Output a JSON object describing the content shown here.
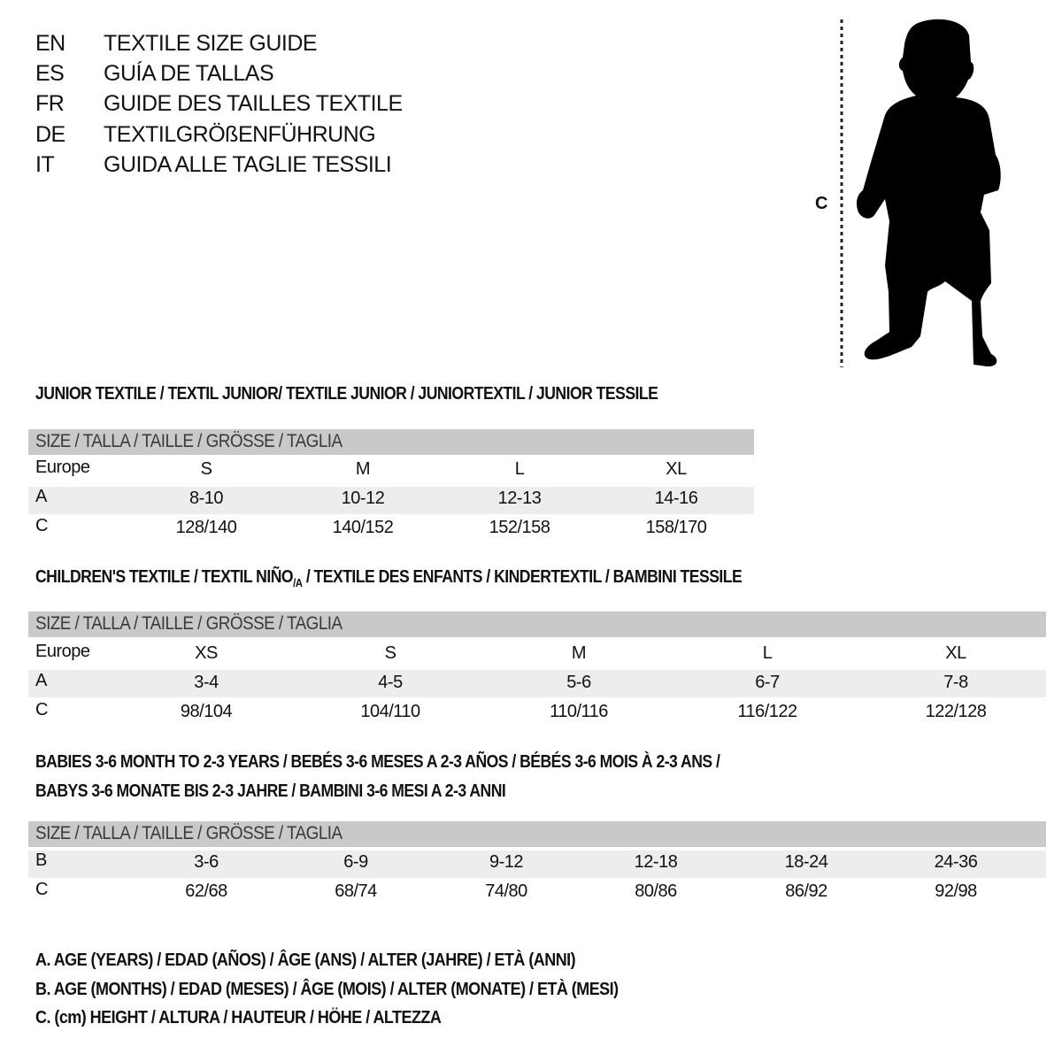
{
  "languages": [
    {
      "code": "EN",
      "title": "TEXTILE SIZE GUIDE"
    },
    {
      "code": "ES",
      "title": "GUÍA DE TALLAS"
    },
    {
      "code": "FR",
      "title": "GUIDE DES TAILLES TEXTILE"
    },
    {
      "code": "DE",
      "title": "TEXTILGRÖßENFÜHRUNG"
    },
    {
      "code": "IT",
      "title": "GUIDA ALLE TAGLIE TESSILI"
    }
  ],
  "figure": {
    "icon": "child-silhouette-icon",
    "measure_label": "C"
  },
  "junior": {
    "title": "JUNIOR TEXTILE / TEXTIL JUNIOR/ TEXTILE JUNIOR / JUNIORTEXTIL / JUNIOR TESSILE",
    "header": "SIZE / TALLA / TAILLE / GRÖSSE / TAGLIA",
    "rows": [
      {
        "label": "Europe",
        "values": [
          "S",
          "M",
          "L",
          "XL"
        ]
      },
      {
        "label": "A",
        "values": [
          "8-10",
          "10-12",
          "12-13",
          "14-16"
        ]
      },
      {
        "label": "C",
        "values": [
          "128/140",
          "140/152",
          "152/158",
          "158/170"
        ]
      }
    ]
  },
  "children": {
    "title_before": "CHILDREN'S TEXTILE / TEXTIL NIÑO",
    "title_sub": "/A",
    "title_after": " / TEXTILE DES ENFANTS / KINDERTEXTIL / BAMBINI TESSILE",
    "header": "SIZE / TALLA / TAILLE / GRÖSSE / TAGLIA",
    "rows": [
      {
        "label": "Europe",
        "values": [
          "XS",
          "S",
          "M",
          "L",
          "XL"
        ]
      },
      {
        "label": "A",
        "values": [
          "3-4",
          "4-5",
          "5-6",
          "6-7",
          "7-8"
        ]
      },
      {
        "label": "C",
        "values": [
          "98/104",
          "104/110",
          "110/116",
          "116/122",
          "122/128"
        ]
      }
    ]
  },
  "babies": {
    "title_line1": "BABIES 3-6 MONTH TO 2-3 YEARS / BEBÉS 3-6 MESES A 2-3 AÑOS / BÉBÉS 3-6 MOIS À 2-3 ANS /",
    "title_line2": "BABYS 3-6 MONATE BIS 2-3 JAHRE / BAMBINI 3-6 MESI A 2-3 ANNI",
    "header": "SIZE / TALLA / TAILLE / GRÖSSE / TAGLIA",
    "rows": [
      {
        "label": "B",
        "values": [
          "3-6",
          "6-9",
          "9-12",
          "12-18",
          "18-24",
          "24-36"
        ]
      },
      {
        "label": "C",
        "values": [
          "62/68",
          "68/74",
          "74/80",
          "80/86",
          "86/92",
          "92/98"
        ]
      }
    ]
  },
  "legend": [
    "A. AGE (YEARS) / EDAD (AÑOS) / ÂGE (ANS) / ALTER (JAHRE) / ETÀ (ANNI)",
    "B. AGE (MONTHS) / EDAD (MESES) / ÂGE (MOIS) / ALTER (MONATE) / ETÀ (MESI)",
    "C. (cm) HEIGHT / ALTURA / HAUTEUR / HÖHE / ALTEZZA"
  ]
}
